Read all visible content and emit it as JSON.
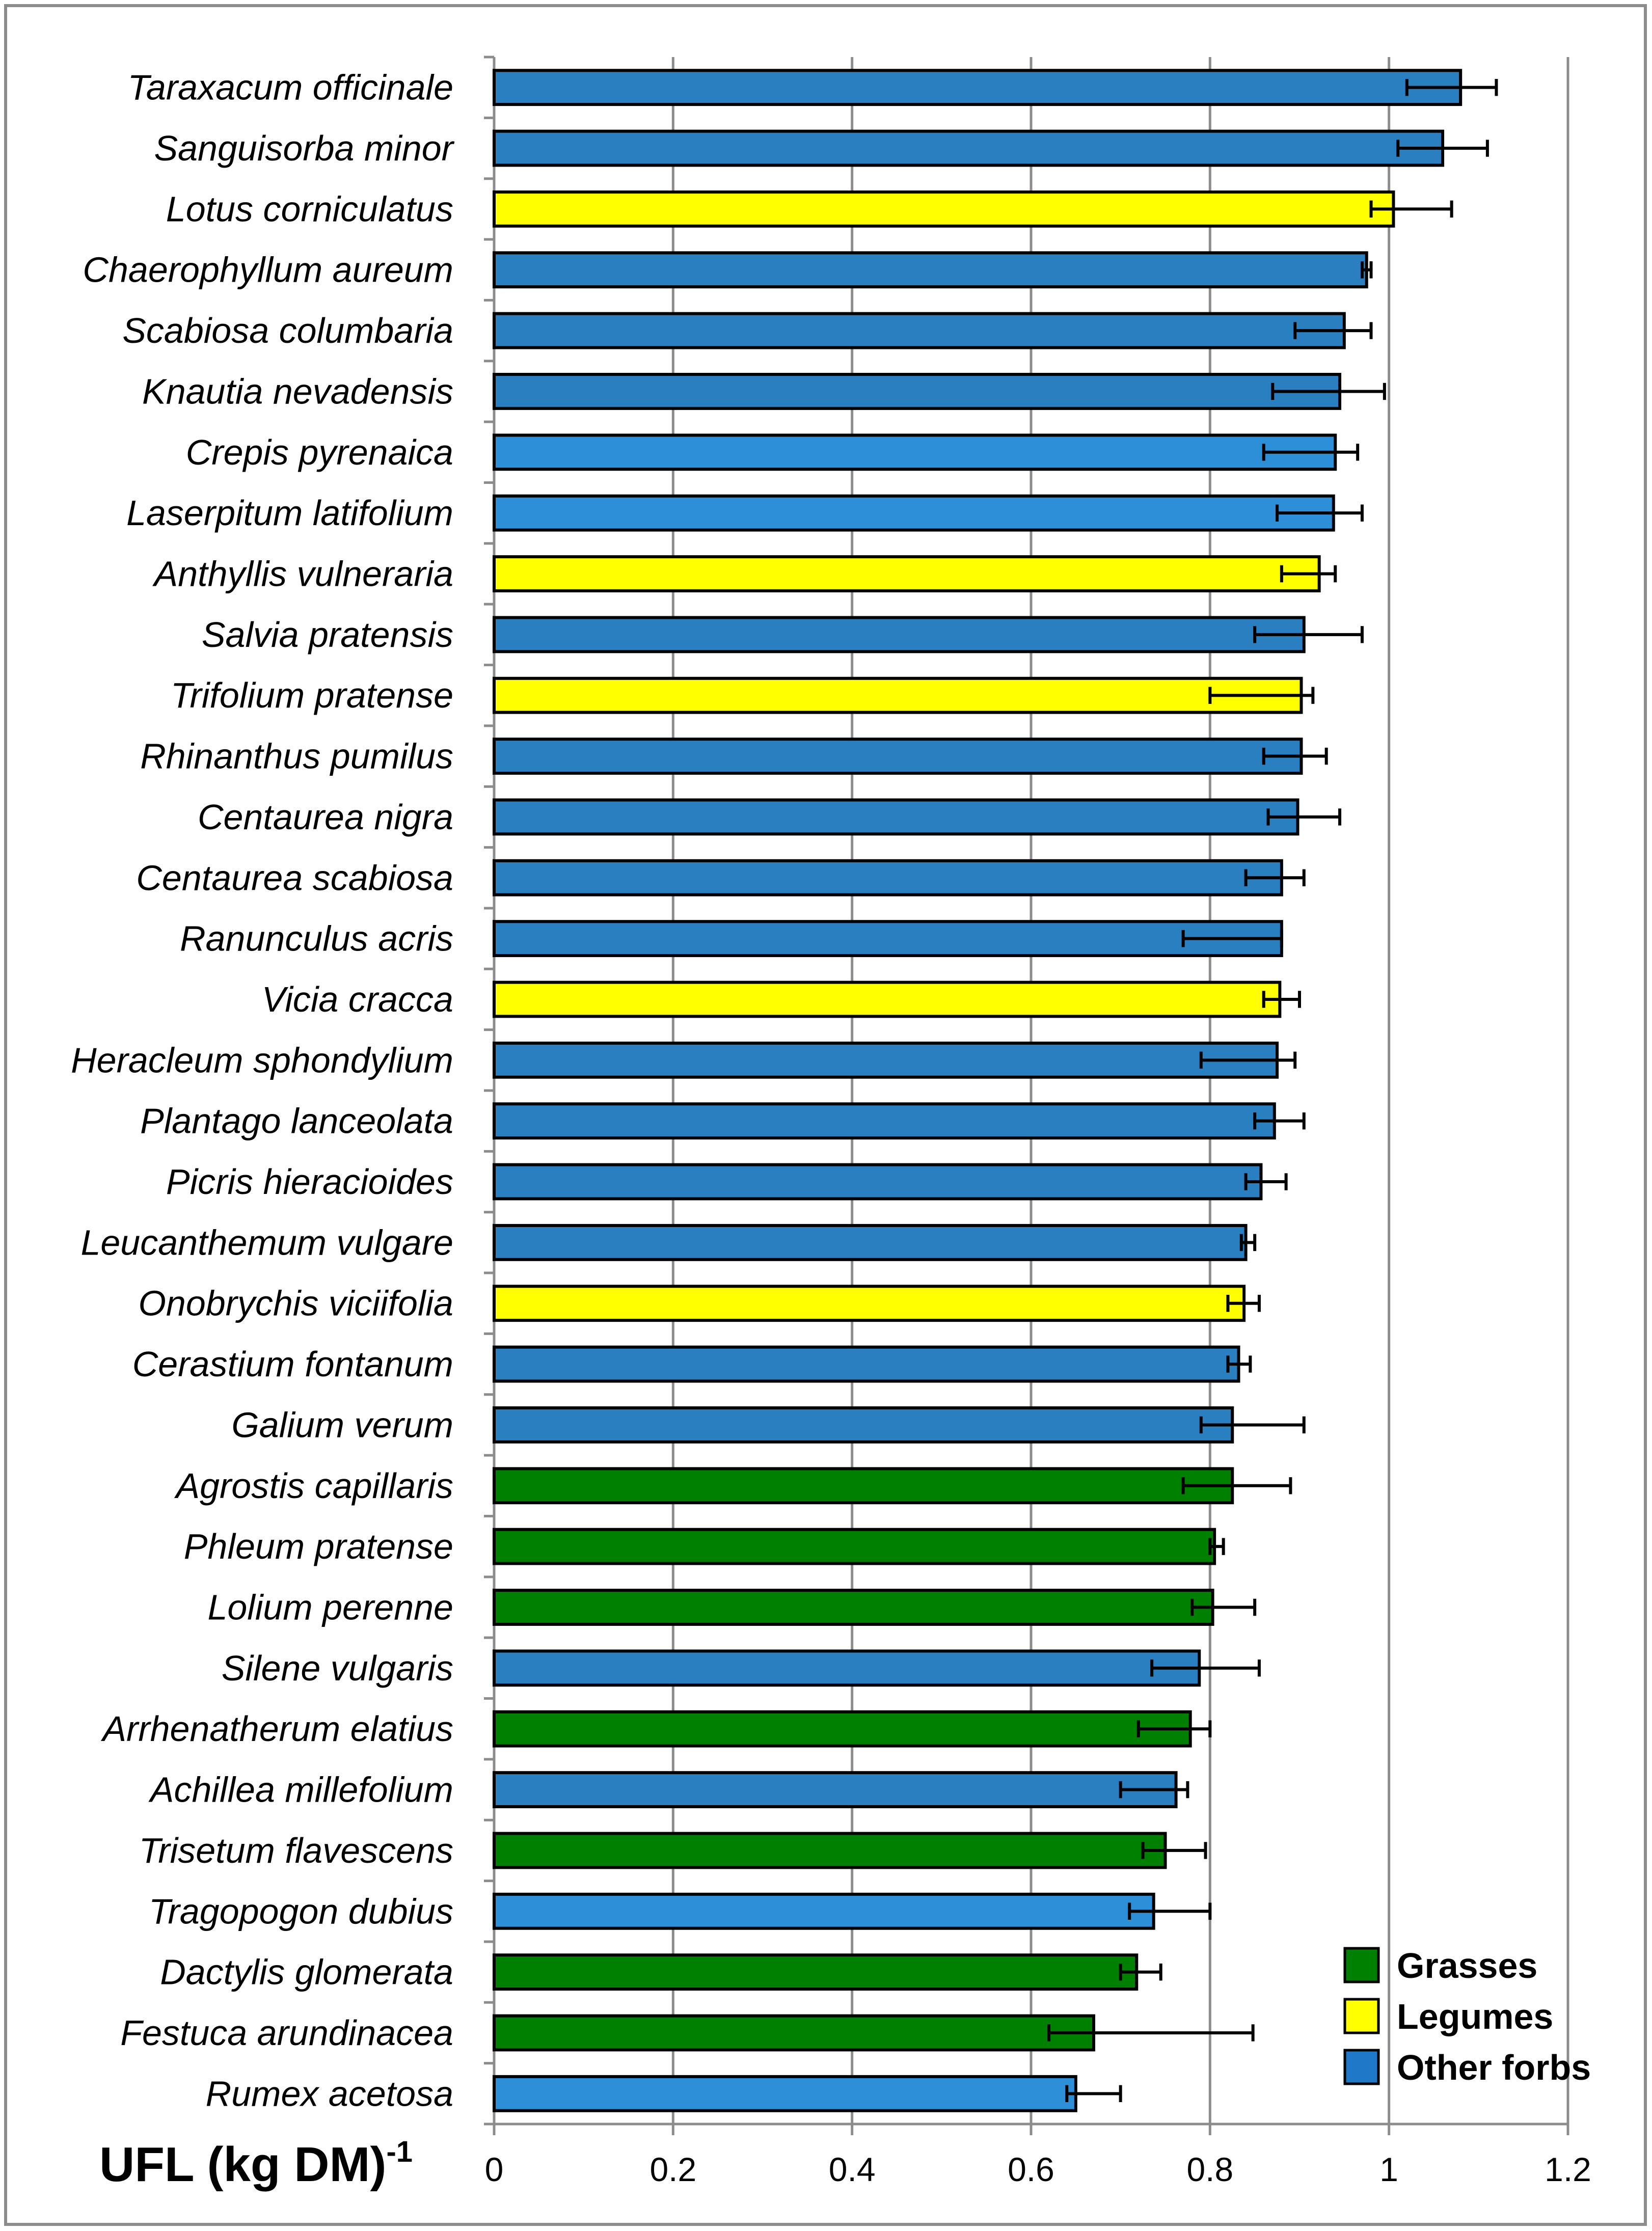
{
  "chart_data": {
    "type": "bar",
    "orientation": "horizontal",
    "title": "",
    "xlabel": "UFL (kg DM)",
    "xlabel_superscript": "-1",
    "ylabel": "",
    "xlim": [
      0,
      1.2
    ],
    "xticks": [
      "0",
      "0.2",
      "0.4",
      "0.6",
      "0.8",
      "1",
      "1.2"
    ],
    "grid": "vertical",
    "legend_position": "bottom-right",
    "groups": [
      {
        "name": "Grasses",
        "color": "#008000"
      },
      {
        "name": "Legumes",
        "color": "#ffff00"
      },
      {
        "name": "Other forbs",
        "color": "#1f78c8"
      }
    ],
    "bars": [
      {
        "label": "Taraxacum officinale",
        "value": 1.08,
        "err_low": 1.02,
        "err_high": 1.12,
        "group": "Other forbs",
        "color": "#2a7fc1"
      },
      {
        "label": "Sanguisorba minor",
        "value": 1.06,
        "err_low": 1.01,
        "err_high": 1.11,
        "group": "Other forbs",
        "color": "#2a7fc1"
      },
      {
        "label": "Lotus corniculatus",
        "value": 1.005,
        "err_low": 0.98,
        "err_high": 1.07,
        "group": "Legumes",
        "color": "#ffff00"
      },
      {
        "label": "Chaerophyllum aureum",
        "value": 0.975,
        "err_low": 0.97,
        "err_high": 0.98,
        "group": "Other forbs",
        "color": "#2a7fc1"
      },
      {
        "label": "Scabiosa columbaria",
        "value": 0.95,
        "err_low": 0.895,
        "err_high": 0.98,
        "group": "Other forbs",
        "color": "#2a7fc1"
      },
      {
        "label": "Knautia nevadensis",
        "value": 0.945,
        "err_low": 0.87,
        "err_high": 0.995,
        "group": "Other forbs",
        "color": "#2a7fc1"
      },
      {
        "label": "Crepis pyrenaica",
        "value": 0.94,
        "err_low": 0.86,
        "err_high": 0.965,
        "group": "Other forbs",
        "color": "#2d8fd8"
      },
      {
        "label": "Laserpitum latifolium",
        "value": 0.938,
        "err_low": 0.875,
        "err_high": 0.97,
        "group": "Other forbs",
        "color": "#2d8fd8"
      },
      {
        "label": "Anthyllis vulneraria",
        "value": 0.922,
        "err_low": 0.88,
        "err_high": 0.94,
        "group": "Legumes",
        "color": "#ffff00"
      },
      {
        "label": "Salvia pratensis",
        "value": 0.905,
        "err_low": 0.85,
        "err_high": 0.97,
        "group": "Other forbs",
        "color": "#2a7fc1"
      },
      {
        "label": "Trifolium pratense",
        "value": 0.902,
        "err_low": 0.8,
        "err_high": 0.915,
        "group": "Legumes",
        "color": "#ffff00"
      },
      {
        "label": "Rhinanthus pumilus",
        "value": 0.902,
        "err_low": 0.86,
        "err_high": 0.93,
        "group": "Other forbs",
        "color": "#2a7fc1"
      },
      {
        "label": "Centaurea nigra",
        "value": 0.898,
        "err_low": 0.865,
        "err_high": 0.945,
        "group": "Other forbs",
        "color": "#2a7fc1"
      },
      {
        "label": "Centaurea scabiosa",
        "value": 0.88,
        "err_low": 0.84,
        "err_high": 0.905,
        "group": "Other forbs",
        "color": "#2a7fc1"
      },
      {
        "label": "Ranunculus acris",
        "value": 0.88,
        "err_low": 0.77,
        "err_high": 0.88,
        "group": "Other forbs",
        "color": "#2a7fc1"
      },
      {
        "label": "Vicia cracca",
        "value": 0.878,
        "err_low": 0.86,
        "err_high": 0.9,
        "group": "Legumes",
        "color": "#ffff00"
      },
      {
        "label": "Heracleum sphondylium",
        "value": 0.875,
        "err_low": 0.79,
        "err_high": 0.895,
        "group": "Other forbs",
        "color": "#2a7fc1"
      },
      {
        "label": "Plantago lanceolata",
        "value": 0.872,
        "err_low": 0.85,
        "err_high": 0.905,
        "group": "Other forbs",
        "color": "#2a7fc1"
      },
      {
        "label": "Picris hieracioides",
        "value": 0.857,
        "err_low": 0.84,
        "err_high": 0.885,
        "group": "Other forbs",
        "color": "#2a7fc1"
      },
      {
        "label": "Leucanthemum vulgare",
        "value": 0.84,
        "err_low": 0.835,
        "err_high": 0.85,
        "group": "Other forbs",
        "color": "#2a7fc1"
      },
      {
        "label": "Onobrychis viciifolia",
        "value": 0.838,
        "err_low": 0.82,
        "err_high": 0.855,
        "group": "Legumes",
        "color": "#ffff00"
      },
      {
        "label": "Cerastium fontanum",
        "value": 0.832,
        "err_low": 0.82,
        "err_high": 0.845,
        "group": "Other forbs",
        "color": "#2a7fc1"
      },
      {
        "label": "Galium verum",
        "value": 0.825,
        "err_low": 0.79,
        "err_high": 0.905,
        "group": "Other forbs",
        "color": "#2a7fc1"
      },
      {
        "label": "Agrostis capillaris",
        "value": 0.825,
        "err_low": 0.77,
        "err_high": 0.89,
        "group": "Grasses",
        "color": "#008000"
      },
      {
        "label": "Phleum pratense",
        "value": 0.805,
        "err_low": 0.8,
        "err_high": 0.815,
        "group": "Grasses",
        "color": "#008000"
      },
      {
        "label": "Lolium perenne",
        "value": 0.803,
        "err_low": 0.78,
        "err_high": 0.85,
        "group": "Grasses",
        "color": "#008000"
      },
      {
        "label": "Silene vulgaris",
        "value": 0.788,
        "err_low": 0.735,
        "err_high": 0.855,
        "group": "Other forbs",
        "color": "#2a7fc1"
      },
      {
        "label": "Arrhenatherum elatius",
        "value": 0.778,
        "err_low": 0.72,
        "err_high": 0.8,
        "group": "Grasses",
        "color": "#008000"
      },
      {
        "label": "Achillea millefolium",
        "value": 0.762,
        "err_low": 0.7,
        "err_high": 0.775,
        "group": "Other forbs",
        "color": "#2a7fc1"
      },
      {
        "label": "Trisetum flavescens",
        "value": 0.75,
        "err_low": 0.725,
        "err_high": 0.795,
        "group": "Grasses",
        "color": "#008000"
      },
      {
        "label": "Tragopogon dubius",
        "value": 0.737,
        "err_low": 0.71,
        "err_high": 0.8,
        "group": "Other forbs",
        "color": "#2d8fd8"
      },
      {
        "label": "Dactylis glomerata",
        "value": 0.718,
        "err_low": 0.7,
        "err_high": 0.745,
        "group": "Grasses",
        "color": "#008000"
      },
      {
        "label": "Festuca arundinacea",
        "value": 0.67,
        "err_low": 0.62,
        "err_high": 0.848,
        "group": "Grasses",
        "color": "#008000"
      },
      {
        "label": "Rumex acetosa",
        "value": 0.65,
        "err_low": 0.64,
        "err_high": 0.7,
        "group": "Other forbs",
        "color": "#2d8fd8"
      }
    ]
  }
}
